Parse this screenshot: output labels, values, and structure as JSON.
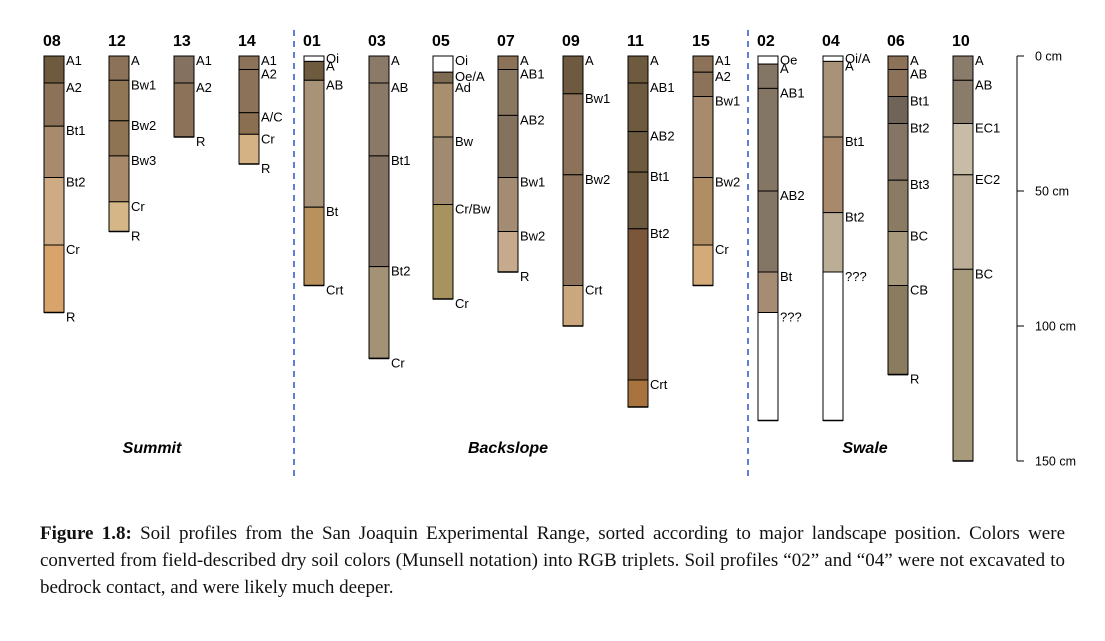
{
  "depth_axis": {
    "unit": "cm",
    "max_depth": 150,
    "ticks": [
      {
        "value": 0,
        "label": "0 cm"
      },
      {
        "value": 50,
        "label": "50 cm"
      },
      {
        "value": 100,
        "label": "100 cm"
      },
      {
        "value": 150,
        "label": "150 cm"
      }
    ]
  },
  "groups": [
    {
      "name": "Summit",
      "profiles": [
        "08",
        "12",
        "13",
        "14"
      ]
    },
    {
      "name": "Backslope",
      "profiles": [
        "01",
        "03",
        "05",
        "07",
        "09",
        "11",
        "15"
      ]
    },
    {
      "name": "Swale",
      "profiles": [
        "02",
        "04",
        "06",
        "10"
      ]
    }
  ],
  "profiles": [
    {
      "id": "08",
      "horizons": [
        {
          "name": "A1",
          "top": 0,
          "bottom": 10,
          "color": "#6e5a3e"
        },
        {
          "name": "A2",
          "top": 10,
          "bottom": 26,
          "color": "#8c7258"
        },
        {
          "name": "Bt1",
          "top": 26,
          "bottom": 45,
          "color": "#a88b6d"
        },
        {
          "name": "Bt2",
          "top": 45,
          "bottom": 70,
          "color": "#ceab84"
        },
        {
          "name": "Cr",
          "top": 70,
          "bottom": 95,
          "color": "#d9a46c"
        },
        {
          "name": "R",
          "top": 95,
          "bottom": 95,
          "color": "#d9a46c"
        }
      ]
    },
    {
      "id": "12",
      "horizons": [
        {
          "name": "A",
          "top": 0,
          "bottom": 9,
          "color": "#8c7258"
        },
        {
          "name": "Bw1",
          "top": 9,
          "bottom": 24,
          "color": "#917656"
        },
        {
          "name": "Bw2",
          "top": 24,
          "bottom": 37,
          "color": "#8e7452"
        },
        {
          "name": "Bw3",
          "top": 37,
          "bottom": 54,
          "color": "#a88a6b"
        },
        {
          "name": "Cr",
          "top": 54,
          "bottom": 65,
          "color": "#d4b687"
        },
        {
          "name": "R",
          "top": 65,
          "bottom": 65,
          "color": "#d4b687"
        }
      ]
    },
    {
      "id": "13",
      "horizons": [
        {
          "name": "A1",
          "top": 0,
          "bottom": 10,
          "color": "#857160"
        },
        {
          "name": "A2",
          "top": 10,
          "bottom": 30,
          "color": "#8c7258"
        },
        {
          "name": "R",
          "top": 30,
          "bottom": 30,
          "color": "#8c7258"
        }
      ]
    },
    {
      "id": "14",
      "horizons": [
        {
          "name": "A1",
          "top": 0,
          "bottom": 5,
          "color": "#8c7258"
        },
        {
          "name": "A2",
          "top": 5,
          "bottom": 21,
          "color": "#8c7258"
        },
        {
          "name": "A/C",
          "top": 21,
          "bottom": 29,
          "color": "#8a7050"
        },
        {
          "name": "Cr",
          "top": 29,
          "bottom": 40,
          "color": "#d4b284"
        },
        {
          "name": "R",
          "top": 40,
          "bottom": 40,
          "color": "#d4b284"
        }
      ]
    },
    {
      "id": "01",
      "horizons": [
        {
          "name": "Oi",
          "top": 0,
          "bottom": 2,
          "color": "#ffffff"
        },
        {
          "name": "A",
          "top": 2,
          "bottom": 9,
          "color": "#6e5a3e"
        },
        {
          "name": "AB",
          "top": 9,
          "bottom": 56,
          "color": "#a89278"
        },
        {
          "name": "Bt",
          "top": 56,
          "bottom": 85,
          "color": "#b9915d"
        },
        {
          "name": "Crt",
          "top": 85,
          "bottom": 85,
          "color": "#b9915d"
        }
      ]
    },
    {
      "id": "03",
      "horizons": [
        {
          "name": "A",
          "top": 0,
          "bottom": 10,
          "color": "#8c7a68"
        },
        {
          "name": "AB",
          "top": 10,
          "bottom": 37,
          "color": "#8a7966"
        },
        {
          "name": "Bt1",
          "top": 37,
          "bottom": 78,
          "color": "#837262"
        },
        {
          "name": "Bt2",
          "top": 78,
          "bottom": 112,
          "color": "#a39276"
        },
        {
          "name": "Cr",
          "top": 112,
          "bottom": 112,
          "color": "#a39276"
        }
      ]
    },
    {
      "id": "05",
      "horizons": [
        {
          "name": "Oi",
          "top": 0,
          "bottom": 6,
          "color": "#ffffff"
        },
        {
          "name": "Oe/A",
          "top": 6,
          "bottom": 10,
          "color": "#7f6a52"
        },
        {
          "name": "Ad",
          "top": 10,
          "bottom": 30,
          "color": "#a8906f"
        },
        {
          "name": "Bw",
          "top": 30,
          "bottom": 55,
          "color": "#a08a70"
        },
        {
          "name": "Cr/Bw",
          "top": 55,
          "bottom": 90,
          "color": "#a7935e"
        },
        {
          "name": "Cr",
          "top": 90,
          "bottom": 90,
          "color": "#a7935e"
        }
      ]
    },
    {
      "id": "07",
      "horizons": [
        {
          "name": "A",
          "top": 0,
          "bottom": 5,
          "color": "#8c7258"
        },
        {
          "name": "AB1",
          "top": 5,
          "bottom": 22,
          "color": "#8a7760"
        },
        {
          "name": "AB2",
          "top": 22,
          "bottom": 45,
          "color": "#85725e"
        },
        {
          "name": "Bw1",
          "top": 45,
          "bottom": 65,
          "color": "#a48b73"
        },
        {
          "name": "Bw2",
          "top": 65,
          "bottom": 80,
          "color": "#c5aa8d"
        },
        {
          "name": "R",
          "top": 80,
          "bottom": 80,
          "color": "#c5aa8d"
        }
      ]
    },
    {
      "id": "09",
      "horizons": [
        {
          "name": "A",
          "top": 0,
          "bottom": 14,
          "color": "#6e5a3e"
        },
        {
          "name": "Bw1",
          "top": 14,
          "bottom": 44,
          "color": "#8c7258"
        },
        {
          "name": "Bw2",
          "top": 44,
          "bottom": 85,
          "color": "#8c7258"
        },
        {
          "name": "Crt",
          "top": 85,
          "bottom": 100,
          "color": "#caa77c"
        }
      ]
    },
    {
      "id": "11",
      "horizons": [
        {
          "name": "A",
          "top": 0,
          "bottom": 10,
          "color": "#6e5a3e"
        },
        {
          "name": "AB1",
          "top": 10,
          "bottom": 28,
          "color": "#6e5a3e"
        },
        {
          "name": "AB2",
          "top": 28,
          "bottom": 43,
          "color": "#6e5a3e"
        },
        {
          "name": "Bt1",
          "top": 43,
          "bottom": 64,
          "color": "#6e5a3e"
        },
        {
          "name": "Bt2",
          "top": 64,
          "bottom": 120,
          "color": "#7b5639"
        },
        {
          "name": "Crt",
          "top": 120,
          "bottom": 130,
          "color": "#a8733e"
        }
      ]
    },
    {
      "id": "15",
      "horizons": [
        {
          "name": "A1",
          "top": 0,
          "bottom": 6,
          "color": "#8c7258"
        },
        {
          "name": "A2",
          "top": 6,
          "bottom": 15,
          "color": "#8c7258"
        },
        {
          "name": "Bw1",
          "top": 15,
          "bottom": 45,
          "color": "#a88b6d"
        },
        {
          "name": "Bw2",
          "top": 45,
          "bottom": 70,
          "color": "#b08d63"
        },
        {
          "name": "Cr",
          "top": 70,
          "bottom": 85,
          "color": "#d4aa79"
        }
      ]
    },
    {
      "id": "02",
      "horizons": [
        {
          "name": "Oe",
          "top": 0,
          "bottom": 3,
          "color": "#ffffff"
        },
        {
          "name": "A",
          "top": 3,
          "bottom": 12,
          "color": "#857564"
        },
        {
          "name": "AB1",
          "top": 12,
          "bottom": 50,
          "color": "#857564"
        },
        {
          "name": "AB2",
          "top": 50,
          "bottom": 80,
          "color": "#857564"
        },
        {
          "name": "Bt",
          "top": 80,
          "bottom": 95,
          "color": "#a68c73"
        },
        {
          "name": "???",
          "top": 95,
          "bottom": 135,
          "color": "#ffffff"
        }
      ]
    },
    {
      "id": "04",
      "horizons": [
        {
          "name": "Oi/A",
          "top": 0,
          "bottom": 2,
          "color": "#ffffff"
        },
        {
          "name": "A",
          "top": 2,
          "bottom": 30,
          "color": "#a89278"
        },
        {
          "name": "Bt1",
          "top": 30,
          "bottom": 58,
          "color": "#a8896b"
        },
        {
          "name": "Bt2",
          "top": 58,
          "bottom": 80,
          "color": "#bcae96"
        },
        {
          "name": "???",
          "top": 80,
          "bottom": 135,
          "color": "#ffffff"
        }
      ]
    },
    {
      "id": "06",
      "horizons": [
        {
          "name": "A",
          "top": 0,
          "bottom": 5,
          "color": "#8c7258"
        },
        {
          "name": "AB",
          "top": 5,
          "bottom": 15,
          "color": "#8c7258"
        },
        {
          "name": "Bt1",
          "top": 15,
          "bottom": 25,
          "color": "#706358"
        },
        {
          "name": "Bt2",
          "top": 25,
          "bottom": 46,
          "color": "#857564"
        },
        {
          "name": "Bt3",
          "top": 46,
          "bottom": 65,
          "color": "#8b7b65"
        },
        {
          "name": "BC",
          "top": 65,
          "bottom": 85,
          "color": "#a8987c"
        },
        {
          "name": "CB",
          "top": 85,
          "bottom": 118,
          "color": "#8b7c60"
        },
        {
          "name": "R",
          "top": 118,
          "bottom": 118,
          "color": "#8b7c60"
        }
      ]
    },
    {
      "id": "10",
      "horizons": [
        {
          "name": "A",
          "top": 0,
          "bottom": 9,
          "color": "#8a7c6a"
        },
        {
          "name": "AB",
          "top": 9,
          "bottom": 25,
          "color": "#8a7c6a"
        },
        {
          "name": "EC1",
          "top": 25,
          "bottom": 44,
          "color": "#c7bca6"
        },
        {
          "name": "EC2",
          "top": 44,
          "bottom": 79,
          "color": "#bcae96"
        },
        {
          "name": "BC",
          "top": 79,
          "bottom": 150,
          "color": "#a89b7c"
        }
      ]
    }
  ],
  "caption": {
    "label": "Figure 1.8:",
    "text": "Soil profiles from the San Joaquin Experimental Range, sorted according to major landscape position. Colors were converted from field-described dry soil colors (Munsell notation) into RGB triplets. Soil profiles “02” and “04” were not excavated to bedrock contact, and were likely much deeper."
  }
}
